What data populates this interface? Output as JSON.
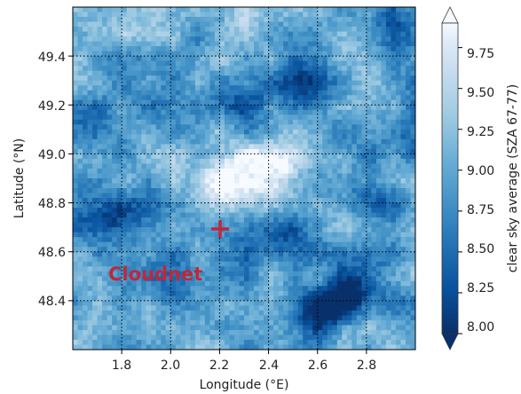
{
  "map": {
    "xlabel": "Longitude (°E)",
    "ylabel": "Latitude (°N)",
    "x_ticks": [
      "1.8",
      "2.0",
      "2.2",
      "2.4",
      "2.6",
      "2.8"
    ],
    "y_ticks": [
      "48.4",
      "48.6",
      "48.8",
      "49.0",
      "49.2",
      "49.4"
    ],
    "colorbar_label": "clear sky average (SZA 67-77)",
    "colorbar_ticks": [
      "8.00",
      "8.25",
      "8.50",
      "8.75",
      "9.00",
      "9.25",
      "9.50",
      "9.75"
    ],
    "colormap": "Blues_r",
    "marker_label": "Cloudnet",
    "marker_color": "#c0273a",
    "grid": true
  },
  "chart_data": {
    "type": "heatmap",
    "xlabel": "Longitude (°E)",
    "ylabel": "Latitude (°N)",
    "xlim": [
      1.6,
      3.0
    ],
    "ylim": [
      48.2,
      49.6
    ],
    "xticks": [
      1.8,
      2.0,
      2.2,
      2.4,
      2.6,
      2.8
    ],
    "yticks": [
      48.4,
      48.6,
      48.8,
      49.0,
      49.2,
      49.4
    ],
    "colorbar": {
      "label": "clear sky average (SZA 67-77)",
      "range": [
        8.0,
        9.9
      ],
      "ticks": [
        8.0,
        8.25,
        8.5,
        8.75,
        9.0,
        9.25,
        9.5,
        9.75
      ],
      "extend": "both"
    },
    "marker": {
      "label": "Cloudnet",
      "lon": 2.2,
      "lat": 48.7
    },
    "features": [
      {
        "lon": 2.33,
        "lat": 48.95,
        "value": 9.9
      },
      {
        "lon": 2.2,
        "lat": 48.88,
        "value": 9.8
      },
      {
        "lon": 2.45,
        "lat": 48.9,
        "value": 9.7
      },
      {
        "lon": 1.7,
        "lat": 49.5,
        "value": 9.4
      },
      {
        "lon": 2.25,
        "lat": 49.55,
        "value": 9.3
      },
      {
        "lon": 1.7,
        "lat": 48.27,
        "value": 9.2
      },
      {
        "lon": 2.4,
        "lat": 48.25,
        "value": 9.1
      },
      {
        "lon": 2.82,
        "lat": 49.45,
        "value": 9.0
      },
      {
        "lon": 1.98,
        "lat": 48.6,
        "value": 9.0
      },
      {
        "lon": 1.73,
        "lat": 48.75,
        "value": 8.0
      },
      {
        "lon": 2.72,
        "lat": 48.42,
        "value": 8.0
      },
      {
        "lon": 2.6,
        "lat": 48.35,
        "value": 8.1
      },
      {
        "lon": 2.55,
        "lat": 49.28,
        "value": 8.2
      },
      {
        "lon": 2.88,
        "lat": 49.5,
        "value": 8.3
      },
      {
        "lon": 2.8,
        "lat": 48.82,
        "value": 8.3
      },
      {
        "lon": 2.3,
        "lat": 49.22,
        "value": 8.4
      },
      {
        "lon": 2.05,
        "lat": 48.5,
        "value": 8.45
      },
      {
        "lon": 1.65,
        "lat": 49.1,
        "value": 8.55
      },
      {
        "lon": 2.45,
        "lat": 48.65,
        "value": 8.5
      },
      {
        "lon": 2.95,
        "lat": 49.05,
        "value": 8.5
      }
    ]
  }
}
